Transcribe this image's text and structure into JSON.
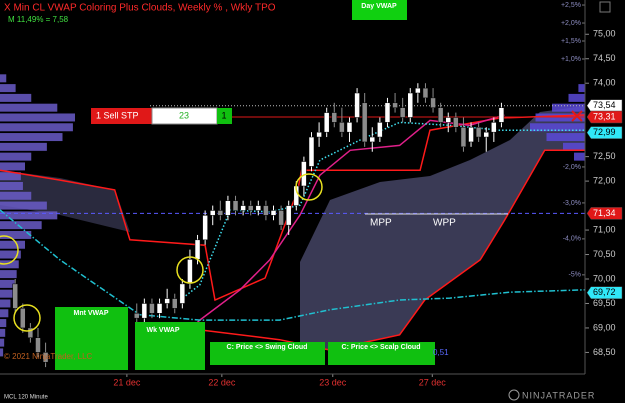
{
  "chart_data": {
    "type": "candlestick",
    "title": "X Min CL VWAP Coloring Plus Clouds, Weekly % , Wkly TPO",
    "subtitle": "M 11,49% = 7,58",
    "x": [
      1,
      2,
      3,
      4,
      5,
      17,
      18,
      19,
      20,
      21,
      22,
      23,
      24,
      25,
      26,
      27,
      28,
      29,
      30,
      31,
      32,
      33,
      34,
      35,
      36,
      37,
      38,
      39,
      40,
      41,
      42,
      43,
      44,
      45,
      46,
      47,
      48,
      49,
      50,
      51,
      52,
      53,
      54,
      55,
      56,
      57,
      58,
      59,
      60,
      61,
      62,
      63,
      64,
      65
    ],
    "open": [
      69.9,
      69.4,
      69.0,
      68.8,
      68.5,
      69.3,
      69.2,
      69.5,
      69.3,
      69.5,
      69.6,
      69.5,
      69.9,
      70.4,
      70.8,
      71.3,
      71.4,
      71.3,
      71.6,
      71.4,
      71.5,
      71.4,
      71.5,
      71.3,
      71.4,
      71.1,
      71.5,
      71.9,
      72.3,
      72.9,
      73.0,
      73.4,
      73.2,
      73.0,
      73.3,
      73.6,
      72.8,
      72.9,
      73.2,
      73.6,
      73.5,
      73.3,
      73.8,
      73.9,
      73.7,
      73.5,
      73.2,
      73.3,
      73.1,
      72.8,
      73.1,
      72.9,
      73.0,
      73.2
    ],
    "high": [
      70.0,
      69.5,
      69.1,
      69.0,
      68.7,
      69.5,
      69.6,
      69.6,
      69.6,
      69.8,
      69.7,
      70.0,
      70.6,
      70.9,
      71.4,
      71.5,
      71.6,
      71.7,
      71.7,
      71.6,
      71.6,
      71.6,
      71.6,
      71.5,
      71.5,
      71.6,
      72.0,
      72.5,
      73.0,
      73.2,
      73.5,
      73.6,
      73.5,
      73.3,
      73.9,
      73.8,
      73.1,
      73.3,
      73.7,
      73.8,
      73.7,
      73.9,
      74.0,
      74.0,
      73.9,
      73.6,
      73.4,
      73.4,
      73.3,
      73.2,
      73.2,
      73.1,
      73.3,
      73.6
    ],
    "low": [
      69.3,
      68.9,
      68.7,
      68.4,
      68.2,
      69.0,
      69.1,
      69.2,
      69.2,
      69.4,
      69.3,
      69.4,
      69.8,
      70.3,
      70.7,
      71.1,
      71.2,
      71.2,
      71.3,
      71.3,
      71.3,
      71.3,
      71.2,
      71.2,
      71.0,
      70.9,
      71.4,
      71.7,
      72.2,
      72.7,
      72.9,
      73.1,
      72.9,
      72.8,
      73.2,
      72.7,
      72.6,
      72.8,
      73.1,
      73.4,
      73.2,
      73.2,
      73.6,
      73.6,
      73.4,
      73.1,
      73.0,
      73.0,
      72.6,
      72.7,
      72.8,
      72.6,
      72.8,
      73.1
    ],
    "close": [
      69.4,
      69.0,
      68.8,
      68.5,
      68.3,
      69.2,
      69.5,
      69.3,
      69.5,
      69.6,
      69.4,
      69.9,
      70.4,
      70.8,
      71.3,
      71.4,
      71.3,
      71.6,
      71.4,
      71.5,
      71.4,
      71.5,
      71.3,
      71.4,
      71.1,
      71.5,
      71.9,
      72.4,
      72.9,
      73.0,
      73.4,
      73.2,
      73.0,
      73.2,
      73.8,
      72.8,
      72.9,
      73.2,
      73.6,
      73.5,
      73.3,
      73.8,
      73.9,
      73.7,
      73.5,
      73.2,
      73.3,
      73.1,
      72.7,
      73.1,
      72.9,
      73.0,
      73.2,
      73.5
    ],
    "up_color": "#ffffff",
    "down_color": "#8c8c8c",
    "xlim": [
      -1,
      76
    ],
    "xticks": [
      {
        "value": 15.7,
        "label": "21 dec"
      },
      {
        "value": 28.2,
        "label": "22 dec"
      },
      {
        "value": 42.8,
        "label": "23 dec"
      },
      {
        "value": 55.9,
        "label": "27 dec"
      }
    ],
    "ylim": [
      68.1,
      75.7
    ],
    "yticks": [
      {
        "value": 68.5,
        "label": "68,50"
      },
      {
        "value": 69,
        "label": "69,00"
      },
      {
        "value": 69.5,
        "label": "69,50"
      },
      {
        "value": 70,
        "label": "70,00"
      },
      {
        "value": 70.5,
        "label": "70,50"
      },
      {
        "value": 71,
        "label": "71,00"
      },
      {
        "value": 72,
        "label": "72,00"
      },
      {
        "value": 72.5,
        "label": "72,50"
      },
      {
        "value": 74,
        "label": "74,00"
      },
      {
        "value": 74.5,
        "label": "74,50"
      },
      {
        "value": 75,
        "label": "75,00"
      }
    ],
    "y2lim": [
      -7.7,
      2.64
    ],
    "y2ticks": [
      {
        "value": 2.5,
        "label": "+2,5%"
      },
      {
        "value": 2,
        "label": "+2,0%"
      },
      {
        "value": 1.5,
        "label": "+1,5%"
      },
      {
        "value": 1,
        "label": "+1,0%"
      },
      {
        "value": -2,
        "label": "-2,0%"
      },
      {
        "value": -3,
        "label": "-3,0%"
      },
      {
        "value": -4,
        "label": "-4,0%"
      },
      {
        "value": -5,
        "label": "-5%"
      }
    ],
    "series": [
      {
        "color": "#ff1a1a",
        "style": "solid",
        "x": [
          -1,
          6.9,
          14.1,
          16.1,
          26.0,
          27.3,
          33.9,
          38.2,
          38.7,
          54.3,
          55.6,
          64.8,
          76
        ],
        "values": [
          72.22,
          72.02,
          71.82,
          70.8,
          70.69,
          69.57,
          70.02,
          71.82,
          72.22,
          72.22,
          73.04,
          73.29,
          73.35
        ]
      },
      {
        "color": "#ff1a1a",
        "style": "solid",
        "x": [
          25.3,
          35.8,
          42.4,
          51.6,
          54.9,
          62.2,
          65.4,
          70.7,
          76
        ],
        "values": [
          68.96,
          68.76,
          68.55,
          68.86,
          69.57,
          70.39,
          71.2,
          72.63,
          72.63
        ]
      },
      {
        "color": "#e0208a",
        "style": "solid",
        "x": [
          22.7,
          25.3,
          30.6,
          34.5,
          38.5,
          41.1,
          45.1,
          51.6,
          55.6,
          60.8,
          65.4
        ],
        "values": [
          68.76,
          69.16,
          69.78,
          70.39,
          71.31,
          72.12,
          72.63,
          72.73,
          73.24,
          73.14,
          73.35
        ]
      },
      {
        "color": "#40e0f0",
        "style": "dotted",
        "x": [
          22.7,
          25.3,
          29.3,
          34.5,
          38.5,
          41.1,
          46.4,
          51.6,
          58.2,
          64.8,
          76
        ],
        "values": [
          69.57,
          69.88,
          71.41,
          71.37,
          71.51,
          72.43,
          72.84,
          73.2,
          73.14,
          73.04,
          73.04
        ]
      },
      {
        "color": "#20c0d0",
        "style": "dashdot",
        "x": [
          -1,
          6.9,
          17.4,
          25.3,
          35.8,
          42.4,
          51.6,
          58.2,
          66.1,
          76
        ],
        "values": [
          71.41,
          70.39,
          69.27,
          69.16,
          69.16,
          69.37,
          69.57,
          69.61,
          69.73,
          69.78
        ]
      }
    ],
    "profiles": [
      {
        "side": "left",
        "color": "#6a5cc8",
        "levels": [
          68.5,
          68.7,
          68.9,
          69.1,
          69.3,
          69.5,
          69.7,
          69.9,
          70.1,
          70.3,
          70.5,
          70.7,
          70.9,
          71.1,
          71.3,
          71.5,
          71.7,
          71.9,
          72.1,
          72.3,
          72.5,
          72.7,
          72.9,
          73.1,
          73.3,
          73.5,
          73.7,
          73.9,
          74.1
        ],
        "counts": [
          3,
          4,
          5,
          6,
          8,
          10,
          12,
          14,
          16,
          18,
          20,
          24,
          30,
          40,
          55,
          45,
          30,
          22,
          20,
          24,
          30,
          45,
          60,
          70,
          72,
          55,
          30,
          15,
          6
        ]
      },
      {
        "side": "right",
        "color": "#5a4ad8",
        "levels": [
          72.5,
          72.7,
          72.9,
          73.1,
          73.3,
          73.5,
          73.7,
          73.9
        ],
        "counts": [
          10,
          20,
          35,
          50,
          45,
          30,
          15,
          6
        ]
      }
    ],
    "price_markers": [
      {
        "value": 73.54,
        "label": "73,54",
        "color": "#ffffff",
        "text_color": "#000000",
        "line": "dotted",
        "line_color": "#bbbbbb"
      },
      {
        "value": 73.31,
        "label": "73,31",
        "color": "#e01818",
        "text_color": "#ffffff",
        "line": "solid",
        "line_color": "#e01818"
      },
      {
        "value": 72.99,
        "label": "72,99",
        "color": "#30e8f8",
        "text_color": "#000000"
      },
      {
        "value": 71.34,
        "label": "71,34",
        "color": "#e01818",
        "text_color": "#ffffff",
        "line": "dashed",
        "line_color": "#5a5aff"
      },
      {
        "value": 69.72,
        "label": "69,72",
        "color": "#30e8f8",
        "text_color": "#000000"
      }
    ],
    "annotations": {
      "day_vwap": "Day VWAP",
      "mnt_vwap": "Mnt VWAP",
      "wk_vwap": "Wk VWAP",
      "swing_cloud": "C: Price <> Swing Cloud",
      "scalp_cloud": "C: Price <> Scalp Cloud",
      "mpp": "MPP",
      "wpp": "WPP",
      "value_tag": "0,51"
    },
    "order": {
      "label": "1 Sell STP",
      "price_field": "23",
      "quantity": "1"
    },
    "footer": {
      "instrument": "MCL 120 Minute",
      "copyright": "© 2021 NinjaTrader, LLC",
      "brand": "NINJATRADER"
    }
  }
}
